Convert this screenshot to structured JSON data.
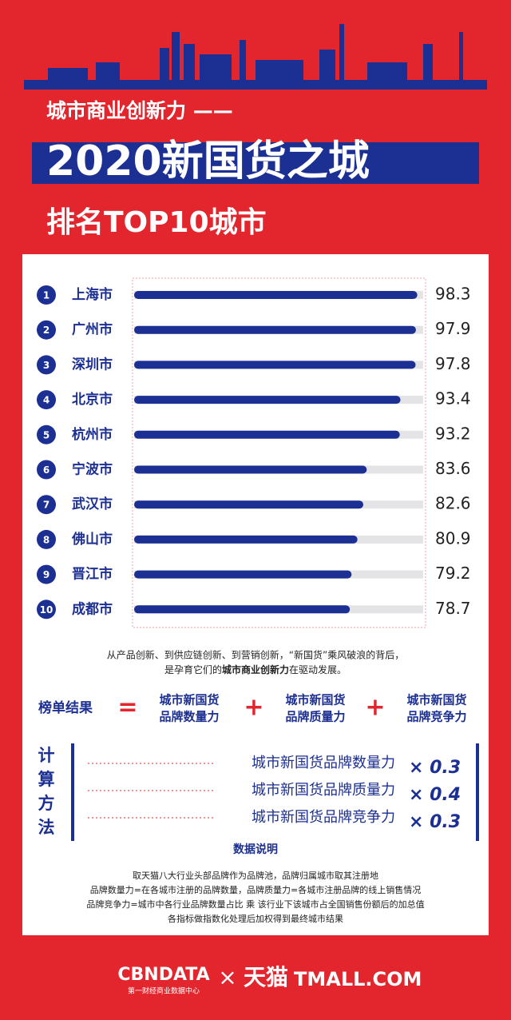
{
  "header": {
    "line1": "城市商业创新力 ——",
    "line2": "2020新国货之城",
    "line3": "排名TOP10城市"
  },
  "chart_data": {
    "type": "bar",
    "orientation": "horizontal",
    "categories": [
      "上海市",
      "广州市",
      "深圳市",
      "北京市",
      "杭州市",
      "宁波市",
      "武汉市",
      "佛山市",
      "晋江市",
      "成都市"
    ],
    "ranks": [
      "1",
      "2",
      "3",
      "4",
      "5",
      "6",
      "7",
      "8",
      "9",
      "10"
    ],
    "values": [
      98.3,
      97.9,
      97.8,
      93.4,
      93.2,
      83.6,
      82.6,
      80.9,
      79.2,
      78.7
    ],
    "xlim": [
      16,
      100
    ],
    "color": "#1c2f92",
    "track_color": "#e4e4e6"
  },
  "intro": {
    "line1": "从产品创新、到供应链创新、到营销创新，“新国货”乘风破浪的背后，",
    "line2_a": "是孕育它们的",
    "line2_b": "城市商业创新力",
    "line2_c": "在驱动发展。"
  },
  "formula": {
    "label": "榜单结果",
    "equals": "=",
    "plus": "+",
    "terms": [
      [
        "城市新国货",
        "品牌数量力"
      ],
      [
        "城市新国货",
        "品牌质量力"
      ],
      [
        "城市新国货",
        "品牌竞争力"
      ]
    ]
  },
  "method": {
    "label": [
      "计",
      "算",
      "方",
      "法"
    ],
    "rows": [
      {
        "name": "城市新国货品牌数量力",
        "weight": "× 0.3"
      },
      {
        "name": "城市新国货品牌质量力",
        "weight": "× 0.4"
      },
      {
        "name": "城市新国货品牌竞争力",
        "weight": "× 0.3"
      }
    ]
  },
  "notes": {
    "title": "数据说明",
    "lines": [
      "取天猫八大行业头部品牌作为品牌池，品牌归属城市取其注册地",
      "品牌数量力=在各城市注册的品牌数量，品牌质量力=各城市注册品牌的线上销售情况",
      "品牌竞争力=城市中各行业品牌数量占比 乘 该行业下该城市占全国销售份额后的加总值",
      "各指标做指数化处理后加权得到最终城市结果"
    ]
  },
  "footer": {
    "brand1": "CBNDATA",
    "brand1_sub": "第一财经商业数据中心",
    "times": "×",
    "brand2": "天猫",
    "brand2_en": "TMALL.COM"
  }
}
